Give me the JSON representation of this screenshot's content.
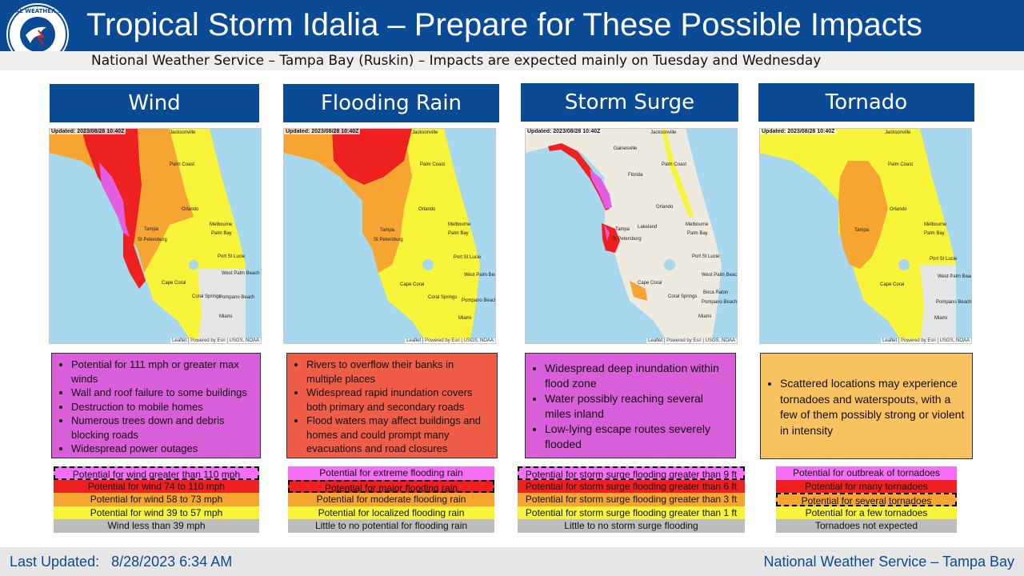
{
  "header": {
    "title": "Tropical Storm Idalia – Prepare for These Possible Impacts",
    "subtitle": "National Weather Service  – Tampa Bay (Ruskin) – Impacts are expected mainly on Tuesday and Wednesday",
    "logo_text": "NATIONAL WEATHER SERVICE"
  },
  "map_common": {
    "updated": "Updated: 2023/08/28 10:40Z",
    "attribution": "Leaflet | Powered by Esri | USGS, NOAA",
    "cities": {
      "jacksonville": "Jacksonville",
      "gainesville": "Gainesville",
      "palm_coast": "Palm Coast",
      "orlando": "Orlando",
      "melbourne": "Melbourne",
      "palm_bay": "Palm Bay",
      "tampa": "Tampa",
      "lakeland": "Lakeland",
      "st_petersburg": "St Petersburg",
      "port_st_lucie": "Port St Lucie",
      "west_palm_beach": "West Palm Beach",
      "cape_coral": "Cape Coral",
      "coral_springs": "Coral Springs",
      "boca_raton": "Boca Raton",
      "pompano_beach": "Pompano Beach",
      "miami": "Miami",
      "florida": "Florida"
    }
  },
  "colors": {
    "extreme": "#e45ee4",
    "high": "#ef2f2f",
    "moderate": "#f5a432",
    "elevated": "#f6f23a",
    "none": "#bdbdbd",
    "header_blue": "#0b4a94"
  },
  "panels": [
    {
      "title": "Wind",
      "desc_color": "#d95ed9",
      "bullets": [
        "Potential for 111 mph or greater max winds",
        "Wall and roof failure to some buildings",
        "Destruction to mobile homes",
        "Numerous trees down and debris blocking roads",
        "Widespread power outages"
      ],
      "legend": [
        {
          "label": "Potential for wind greater than 110 mph",
          "color": "#f56ef5",
          "selected": true
        },
        {
          "label": "Potential for wind 74 to 110 mph",
          "color": "#ef2020",
          "selected": false
        },
        {
          "label": "Potential for wind 58 to 73 mph",
          "color": "#f6a533",
          "selected": false
        },
        {
          "label": "Potential for wind 39 to 57 mph",
          "color": "#f8f43a",
          "selected": false
        },
        {
          "label": "Wind less than 39 mph",
          "color": "#bdbdbd",
          "selected": false
        }
      ]
    },
    {
      "title": "Flooding Rain",
      "desc_color": "#ef5c47",
      "bullets": [
        "Rivers to overflow their banks in multiple places",
        "Widespread rapid inundation covers both primary and secondary roads",
        "Flood waters may affect buildings and homes and could prompt many evacuations and road closures"
      ],
      "legend": [
        {
          "label": "Potential for extreme flooding rain",
          "color": "#f56ef5",
          "selected": false
        },
        {
          "label": "Potential for major flooding rain",
          "color": "#ef2020",
          "selected": true
        },
        {
          "label": "Potential for moderate flooding rain",
          "color": "#f6a533",
          "selected": false
        },
        {
          "label": "Potential for localized flooding rain",
          "color": "#f8f43a",
          "selected": false
        },
        {
          "label": "Little to no potential for flooding rain",
          "color": "#bdbdbd",
          "selected": false
        }
      ]
    },
    {
      "title": "Storm Surge",
      "desc_color": "#d95ed9",
      "bullets": [
        "Widespread deep inundation within flood zone",
        "Water possibly reaching several miles inland",
        "Low-lying escape routes severely flooded"
      ],
      "legend": [
        {
          "label": "Potential for storm surge flooding greater than 9 ft",
          "color": "#f56ef5",
          "selected": true
        },
        {
          "label": "Potential for storm surge flooding greater than 6 ft",
          "color": "#ef2020",
          "selected": false
        },
        {
          "label": "Potential for storm surge flooding greater than 3 ft",
          "color": "#f6a533",
          "selected": false
        },
        {
          "label": "Potential for storm surge flooding greater than 1 ft",
          "color": "#f8f43a",
          "selected": false
        },
        {
          "label": "Little to no storm surge flooding",
          "color": "#bdbdbd",
          "selected": false
        }
      ]
    },
    {
      "title": "Tornado",
      "desc_color": "#f8c260",
      "bullets": [
        "Scattered locations may experience tornadoes and waterspouts, with a few of them possibly strong or violent in intensity"
      ],
      "legend": [
        {
          "label": "Potential for outbreak of tornadoes",
          "color": "#f56ef5",
          "selected": false
        },
        {
          "label": "Potential for many  tornadoes",
          "color": "#ef2020",
          "selected": false
        },
        {
          "label": "Potential for several tornadoes",
          "color": "#f6a533",
          "selected": true
        },
        {
          "label": "Potential for a few tornadoes",
          "color": "#f8f43a",
          "selected": false
        },
        {
          "label": "Tornadoes not expected",
          "color": "#bdbdbd",
          "selected": false
        }
      ]
    }
  ],
  "footer": {
    "last_updated_label": "Last Updated:",
    "last_updated_value": "8/28/2023 6:34 AM",
    "org": "National Weather Service – Tampa Bay"
  }
}
